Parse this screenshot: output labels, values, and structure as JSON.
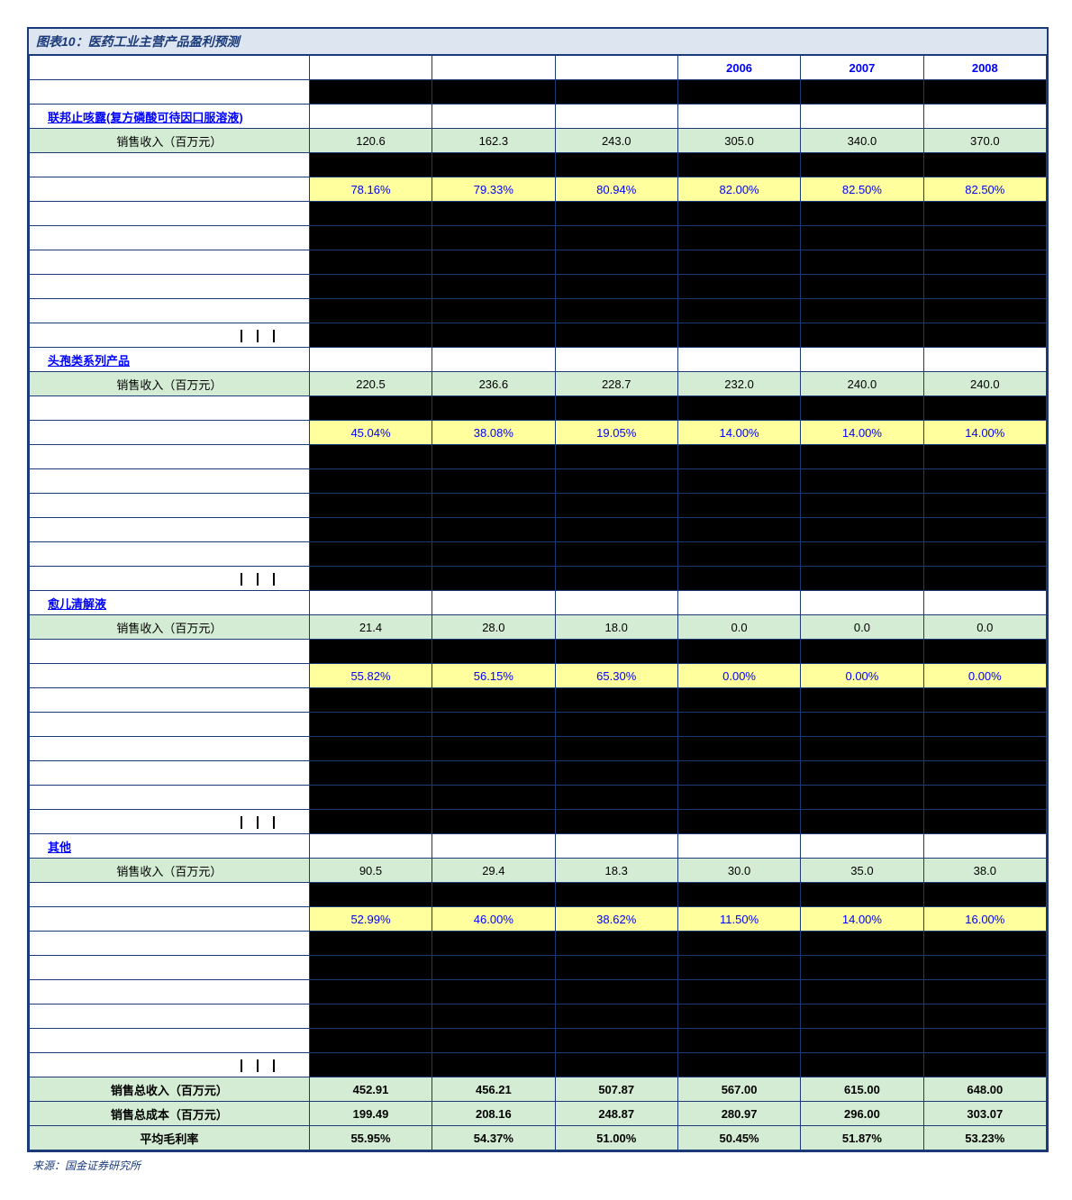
{
  "title": "图表10：医药工业主营产品盈利预测",
  "source": "来源：国金证券研究所",
  "years": [
    "",
    "",
    "",
    "2006",
    "2007",
    "2008"
  ],
  "colors": {
    "border": "#1a3a7a",
    "title_bg": "#dde5f0",
    "green": "#d4ecd4",
    "yellow": "#ffff9e",
    "link_blue": "#0000ff",
    "dark": "#000000"
  },
  "sections": [
    {
      "name": "联邦止咳露(复方磷酸可待因口服溶液)",
      "revenue_label": "销售收入（百万元）",
      "revenue": [
        "120.6",
        "162.3",
        "243.0",
        "305.0",
        "340.0",
        "370.0"
      ],
      "margin": [
        "78.16%",
        "79.33%",
        "80.94%",
        "82.00%",
        "82.50%",
        "82.50%"
      ],
      "dark_rows": 5
    },
    {
      "name": "头孢类系列产品",
      "revenue_label": "销售收入（百万元）",
      "revenue": [
        "220.5",
        "236.6",
        "228.7",
        "232.0",
        "240.0",
        "240.0"
      ],
      "margin": [
        "45.04%",
        "38.08%",
        "19.05%",
        "14.00%",
        "14.00%",
        "14.00%"
      ],
      "dark_rows": 5
    },
    {
      "name": "愈儿清解液",
      "revenue_label": "销售收入（百万元）",
      "revenue": [
        "21.4",
        "28.0",
        "18.0",
        "0.0",
        "0.0",
        "0.0"
      ],
      "margin": [
        "55.82%",
        "56.15%",
        "65.30%",
        "0.00%",
        "0.00%",
        "0.00%"
      ],
      "dark_rows": 5
    },
    {
      "name": "其他",
      "revenue_label": "销售收入（百万元）",
      "revenue": [
        "90.5",
        "29.4",
        "18.3",
        "30.0",
        "35.0",
        "38.0"
      ],
      "margin": [
        "52.99%",
        "46.00%",
        "38.62%",
        "11.50%",
        "14.00%",
        "16.00%"
      ],
      "dark_rows": 5
    }
  ],
  "totals": [
    {
      "label": "销售总收入（百万元）",
      "vals": [
        "452.91",
        "456.21",
        "507.87",
        "567.00",
        "615.00",
        "648.00"
      ]
    },
    {
      "label": "销售总成本（百万元）",
      "vals": [
        "199.49",
        "208.16",
        "248.87",
        "280.97",
        "296.00",
        "303.07"
      ]
    },
    {
      "label": "平均毛利率",
      "vals": [
        "55.95%",
        "54.37%",
        "51.00%",
        "50.45%",
        "51.87%",
        "53.23%"
      ]
    }
  ]
}
